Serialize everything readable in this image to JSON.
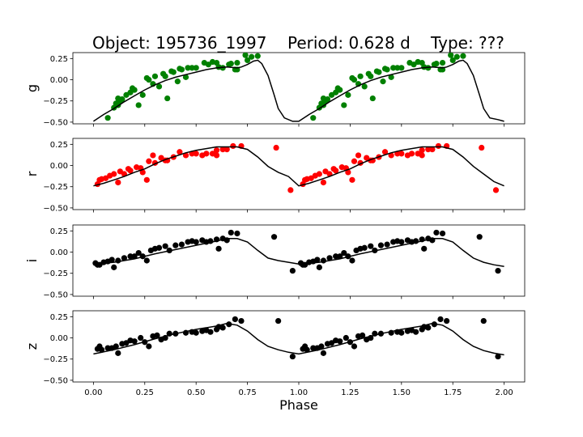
{
  "title": {
    "object": "Object: 195736_1997",
    "period": "Period: 0.628 d",
    "type": "Type: ???"
  },
  "chart_data": {
    "type": "scatter",
    "xlabel": "Phase",
    "xlim": [
      -0.1,
      2.1
    ],
    "xticks": [
      "0.00",
      "0.25",
      "0.50",
      "0.75",
      "1.00",
      "1.25",
      "1.50",
      "1.75",
      "2.00"
    ],
    "xtick_values": [
      0,
      0.25,
      0.5,
      0.75,
      1.0,
      1.25,
      1.5,
      1.75,
      2.0
    ],
    "ylim": [
      -0.52,
      0.32
    ],
    "yticks": [
      "0.25",
      "0.00",
      "−0.25",
      "−0.50"
    ],
    "ytick_values": [
      0.25,
      0,
      -0.25,
      -0.5
    ],
    "panels": [
      {
        "name": "g",
        "color": "#008000",
        "points": [
          [
            0.07,
            -0.45
          ],
          [
            0.1,
            -0.33
          ],
          [
            0.11,
            -0.28
          ],
          [
            0.12,
            -0.3
          ],
          [
            0.12,
            -0.22
          ],
          [
            0.13,
            -0.25
          ],
          [
            0.14,
            -0.23
          ],
          [
            0.16,
            -0.18
          ],
          [
            0.18,
            -0.15
          ],
          [
            0.19,
            -0.1
          ],
          [
            0.2,
            -0.12
          ],
          [
            0.22,
            -0.3
          ],
          [
            0.24,
            -0.18
          ],
          [
            0.26,
            0.02
          ],
          [
            0.27,
            0.0
          ],
          [
            0.29,
            -0.05
          ],
          [
            0.3,
            0.04
          ],
          [
            0.32,
            -0.08
          ],
          [
            0.34,
            0.07
          ],
          [
            0.35,
            0.04
          ],
          [
            0.36,
            -0.22
          ],
          [
            0.38,
            0.1
          ],
          [
            0.39,
            0.09
          ],
          [
            0.41,
            -0.02
          ],
          [
            0.42,
            0.13
          ],
          [
            0.43,
            0.12
          ],
          [
            0.45,
            0.03
          ],
          [
            0.46,
            0.14
          ],
          [
            0.48,
            0.14
          ],
          [
            0.5,
            0.14
          ],
          [
            0.54,
            0.2
          ],
          [
            0.56,
            0.18
          ],
          [
            0.58,
            0.21
          ],
          [
            0.6,
            0.2
          ],
          [
            0.61,
            0.15
          ],
          [
            0.63,
            0.14
          ],
          [
            0.66,
            0.18
          ],
          [
            0.67,
            0.19
          ],
          [
            0.69,
            0.12
          ],
          [
            0.7,
            0.2
          ],
          [
            0.7,
            0.12
          ],
          [
            0.74,
            0.29
          ],
          [
            0.75,
            0.23
          ],
          [
            0.77,
            0.27
          ],
          [
            0.8,
            0.28
          ]
        ],
        "model": [
          [
            0.0,
            -0.49
          ],
          [
            0.05,
            -0.41
          ],
          [
            0.1,
            -0.34
          ],
          [
            0.15,
            -0.26
          ],
          [
            0.2,
            -0.19
          ],
          [
            0.25,
            -0.12
          ],
          [
            0.3,
            -0.06
          ],
          [
            0.35,
            -0.01
          ],
          [
            0.4,
            0.03
          ],
          [
            0.45,
            0.06
          ],
          [
            0.5,
            0.09
          ],
          [
            0.55,
            0.12
          ],
          [
            0.6,
            0.14
          ],
          [
            0.65,
            0.15
          ],
          [
            0.7,
            0.14
          ],
          [
            0.72,
            0.15
          ],
          [
            0.75,
            0.18
          ],
          [
            0.78,
            0.22
          ],
          [
            0.8,
            0.23
          ],
          [
            0.82,
            0.19
          ],
          [
            0.85,
            0.05
          ],
          [
            0.88,
            -0.18
          ],
          [
            0.9,
            -0.34
          ],
          [
            0.93,
            -0.45
          ],
          [
            0.97,
            -0.49
          ],
          [
            1.0,
            -0.49
          ],
          [
            1.05,
            -0.41
          ],
          [
            1.1,
            -0.34
          ],
          [
            1.15,
            -0.26
          ],
          [
            1.2,
            -0.19
          ],
          [
            1.25,
            -0.12
          ],
          [
            1.3,
            -0.06
          ],
          [
            1.35,
            -0.01
          ],
          [
            1.4,
            0.03
          ],
          [
            1.45,
            0.06
          ],
          [
            1.5,
            0.09
          ],
          [
            1.55,
            0.12
          ],
          [
            1.6,
            0.14
          ],
          [
            1.65,
            0.15
          ],
          [
            1.7,
            0.14
          ],
          [
            1.72,
            0.15
          ],
          [
            1.75,
            0.18
          ],
          [
            1.78,
            0.22
          ],
          [
            1.8,
            0.23
          ],
          [
            1.82,
            0.19
          ],
          [
            1.85,
            0.05
          ],
          [
            1.88,
            -0.18
          ],
          [
            1.9,
            -0.34
          ],
          [
            1.93,
            -0.45
          ],
          [
            1.97,
            -0.47
          ],
          [
            2.0,
            -0.49
          ]
        ]
      },
      {
        "name": "r",
        "color": "#ff0000",
        "points": [
          [
            0.02,
            -0.22
          ],
          [
            0.03,
            -0.17
          ],
          [
            0.04,
            -0.16
          ],
          [
            0.06,
            -0.15
          ],
          [
            0.08,
            -0.12
          ],
          [
            0.1,
            -0.1
          ],
          [
            0.12,
            -0.2
          ],
          [
            0.13,
            -0.07
          ],
          [
            0.15,
            -0.1
          ],
          [
            0.17,
            -0.04
          ],
          [
            0.18,
            -0.06
          ],
          [
            0.21,
            -0.02
          ],
          [
            0.23,
            -0.03
          ],
          [
            0.24,
            -0.08
          ],
          [
            0.26,
            -0.17
          ],
          [
            0.27,
            0.05
          ],
          [
            0.29,
            0.12
          ],
          [
            0.3,
            0.03
          ],
          [
            0.33,
            0.09
          ],
          [
            0.35,
            0.06
          ],
          [
            0.36,
            0.06
          ],
          [
            0.39,
            0.1
          ],
          [
            0.42,
            0.16
          ],
          [
            0.45,
            0.12
          ],
          [
            0.48,
            0.14
          ],
          [
            0.5,
            0.14
          ],
          [
            0.53,
            0.12
          ],
          [
            0.55,
            0.14
          ],
          [
            0.58,
            0.14
          ],
          [
            0.6,
            0.12
          ],
          [
            0.6,
            0.18
          ],
          [
            0.63,
            0.19
          ],
          [
            0.65,
            0.19
          ],
          [
            0.68,
            0.23
          ],
          [
            0.72,
            0.23
          ],
          [
            0.89,
            0.21
          ],
          [
            0.96,
            -0.29
          ]
        ],
        "model": [
          [
            0.0,
            -0.24
          ],
          [
            0.05,
            -0.21
          ],
          [
            0.1,
            -0.17
          ],
          [
            0.15,
            -0.13
          ],
          [
            0.2,
            -0.08
          ],
          [
            0.25,
            -0.04
          ],
          [
            0.3,
            0.02
          ],
          [
            0.35,
            0.07
          ],
          [
            0.4,
            0.11
          ],
          [
            0.45,
            0.15
          ],
          [
            0.5,
            0.18
          ],
          [
            0.55,
            0.2
          ],
          [
            0.6,
            0.22
          ],
          [
            0.65,
            0.22
          ],
          [
            0.7,
            0.22
          ],
          [
            0.75,
            0.19
          ],
          [
            0.8,
            0.1
          ],
          [
            0.85,
            -0.01
          ],
          [
            0.9,
            -0.08
          ],
          [
            0.95,
            -0.13
          ],
          [
            1.0,
            -0.24
          ],
          [
            1.05,
            -0.21
          ],
          [
            1.1,
            -0.17
          ],
          [
            1.15,
            -0.13
          ],
          [
            1.2,
            -0.08
          ],
          [
            1.25,
            -0.04
          ],
          [
            1.3,
            0.02
          ],
          [
            1.35,
            0.07
          ],
          [
            1.4,
            0.11
          ],
          [
            1.45,
            0.15
          ],
          [
            1.5,
            0.18
          ],
          [
            1.55,
            0.2
          ],
          [
            1.6,
            0.22
          ],
          [
            1.65,
            0.22
          ],
          [
            1.7,
            0.22
          ],
          [
            1.75,
            0.19
          ],
          [
            1.8,
            0.1
          ],
          [
            1.85,
            -0.01
          ],
          [
            1.9,
            -0.1
          ],
          [
            1.95,
            -0.19
          ],
          [
            2.0,
            -0.24
          ]
        ]
      },
      {
        "name": "i",
        "color": "#000000",
        "points": [
          [
            0.01,
            -0.13
          ],
          [
            0.02,
            -0.15
          ],
          [
            0.03,
            -0.15
          ],
          [
            0.05,
            -0.12
          ],
          [
            0.07,
            -0.11
          ],
          [
            0.09,
            -0.09
          ],
          [
            0.1,
            -0.18
          ],
          [
            0.12,
            -0.1
          ],
          [
            0.15,
            -0.07
          ],
          [
            0.18,
            -0.05
          ],
          [
            0.2,
            -0.05
          ],
          [
            0.22,
            -0.01
          ],
          [
            0.24,
            -0.05
          ],
          [
            0.26,
            -0.1
          ],
          [
            0.28,
            0.02
          ],
          [
            0.3,
            0.04
          ],
          [
            0.32,
            0.05
          ],
          [
            0.35,
            0.07
          ],
          [
            0.37,
            0.02
          ],
          [
            0.4,
            0.08
          ],
          [
            0.43,
            0.09
          ],
          [
            0.46,
            0.12
          ],
          [
            0.48,
            0.13
          ],
          [
            0.5,
            0.12
          ],
          [
            0.53,
            0.14
          ],
          [
            0.55,
            0.12
          ],
          [
            0.57,
            0.13
          ],
          [
            0.6,
            0.15
          ],
          [
            0.61,
            0.04
          ],
          [
            0.63,
            0.16
          ],
          [
            0.65,
            0.14
          ],
          [
            0.67,
            0.23
          ],
          [
            0.7,
            0.22
          ],
          [
            0.88,
            0.18
          ],
          [
            0.97,
            -0.22
          ]
        ],
        "model": [
          [
            0.0,
            -0.14
          ],
          [
            0.1,
            -0.12
          ],
          [
            0.2,
            -0.08
          ],
          [
            0.3,
            -0.02
          ],
          [
            0.4,
            0.03
          ],
          [
            0.5,
            0.08
          ],
          [
            0.6,
            0.13
          ],
          [
            0.65,
            0.16
          ],
          [
            0.7,
            0.16
          ],
          [
            0.75,
            0.12
          ],
          [
            0.8,
            0.02
          ],
          [
            0.85,
            -0.07
          ],
          [
            0.9,
            -0.1
          ],
          [
            0.95,
            -0.12
          ],
          [
            1.0,
            -0.14
          ],
          [
            1.1,
            -0.12
          ],
          [
            1.2,
            -0.08
          ],
          [
            1.3,
            -0.02
          ],
          [
            1.4,
            0.03
          ],
          [
            1.5,
            0.08
          ],
          [
            1.6,
            0.13
          ],
          [
            1.65,
            0.16
          ],
          [
            1.7,
            0.16
          ],
          [
            1.75,
            0.12
          ],
          [
            1.8,
            0.02
          ],
          [
            1.85,
            -0.07
          ],
          [
            1.9,
            -0.12
          ],
          [
            1.95,
            -0.15
          ],
          [
            2.0,
            -0.17
          ]
        ]
      },
      {
        "name": "z",
        "color": "#000000",
        "points": [
          [
            0.02,
            -0.13
          ],
          [
            0.03,
            -0.1
          ],
          [
            0.04,
            -0.14
          ],
          [
            0.07,
            -0.12
          ],
          [
            0.09,
            -0.12
          ],
          [
            0.11,
            -0.1
          ],
          [
            0.12,
            -0.18
          ],
          [
            0.14,
            -0.07
          ],
          [
            0.16,
            -0.06
          ],
          [
            0.18,
            -0.03
          ],
          [
            0.2,
            -0.04
          ],
          [
            0.23,
            0.0
          ],
          [
            0.25,
            -0.05
          ],
          [
            0.27,
            -0.1
          ],
          [
            0.29,
            0.02
          ],
          [
            0.31,
            0.03
          ],
          [
            0.33,
            -0.02
          ],
          [
            0.35,
            0.0
          ],
          [
            0.37,
            0.05
          ],
          [
            0.4,
            0.05
          ],
          [
            0.45,
            0.06
          ],
          [
            0.48,
            0.07
          ],
          [
            0.5,
            0.06
          ],
          [
            0.53,
            0.08
          ],
          [
            0.55,
            0.09
          ],
          [
            0.57,
            0.07
          ],
          [
            0.6,
            0.1
          ],
          [
            0.61,
            0.13
          ],
          [
            0.63,
            0.12
          ],
          [
            0.66,
            0.16
          ],
          [
            0.69,
            0.22
          ],
          [
            0.72,
            0.2
          ],
          [
            0.9,
            0.2
          ],
          [
            0.97,
            -0.22
          ]
        ],
        "model": [
          [
            0.0,
            -0.19
          ],
          [
            0.1,
            -0.14
          ],
          [
            0.2,
            -0.08
          ],
          [
            0.3,
            -0.01
          ],
          [
            0.4,
            0.05
          ],
          [
            0.5,
            0.1
          ],
          [
            0.6,
            0.14
          ],
          [
            0.65,
            0.17
          ],
          [
            0.7,
            0.15
          ],
          [
            0.75,
            0.08
          ],
          [
            0.8,
            -0.02
          ],
          [
            0.85,
            -0.1
          ],
          [
            0.9,
            -0.14
          ],
          [
            0.95,
            -0.17
          ],
          [
            1.0,
            -0.19
          ],
          [
            1.1,
            -0.14
          ],
          [
            1.2,
            -0.08
          ],
          [
            1.3,
            -0.01
          ],
          [
            1.4,
            0.05
          ],
          [
            1.5,
            0.1
          ],
          [
            1.6,
            0.14
          ],
          [
            1.65,
            0.17
          ],
          [
            1.7,
            0.15
          ],
          [
            1.75,
            0.08
          ],
          [
            1.8,
            -0.02
          ],
          [
            1.85,
            -0.1
          ],
          [
            1.9,
            -0.15
          ],
          [
            1.95,
            -0.18
          ],
          [
            2.0,
            -0.2
          ]
        ]
      }
    ]
  }
}
